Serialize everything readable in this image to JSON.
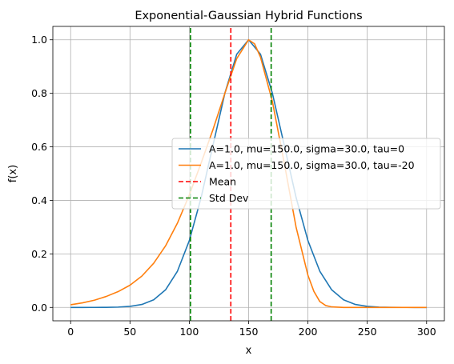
{
  "chart_data": {
    "type": "line",
    "title": "Exponential-Gaussian Hybrid Functions",
    "xlabel": "x",
    "ylabel": "f(x)",
    "xlim": [
      -15,
      315
    ],
    "ylim": [
      -0.05,
      1.05
    ],
    "xticks": [
      0,
      50,
      100,
      150,
      200,
      250,
      300
    ],
    "yticks": [
      0.0,
      0.2,
      0.4,
      0.6,
      0.8,
      1.0
    ],
    "xtick_labels": [
      "0",
      "50",
      "100",
      "150",
      "200",
      "250",
      "300"
    ],
    "ytick_labels": [
      "0.0",
      "0.2",
      "0.4",
      "0.6",
      "0.8",
      "1.0"
    ],
    "grid": true,
    "legend_position": "center-right",
    "series": [
      {
        "name": "A=1.0, mu=150.0, sigma=30.0, tau=0",
        "color": "#1f77b4",
        "style": "solid",
        "x": [
          0,
          10,
          20,
          30,
          40,
          50,
          60,
          70,
          80,
          90,
          100,
          110,
          120,
          130,
          140,
          150,
          160,
          170,
          180,
          190,
          200,
          210,
          220,
          230,
          240,
          250,
          260,
          270,
          280,
          290,
          300
        ],
        "y": [
          0.0,
          0.0,
          0.0001,
          0.0003,
          0.0012,
          0.0039,
          0.011,
          0.0286,
          0.0657,
          0.1353,
          0.2494,
          0.4111,
          0.6065,
          0.8007,
          0.946,
          1.0,
          0.946,
          0.8007,
          0.6065,
          0.4111,
          0.2494,
          0.1353,
          0.0657,
          0.0286,
          0.011,
          0.0039,
          0.0012,
          0.0003,
          0.0001,
          0.0,
          0.0
        ]
      },
      {
        "name": "A=1.0, mu=150.0, sigma=30.0, tau=-20",
        "color": "#ff7f0e",
        "style": "solid",
        "x": [
          0,
          10,
          20,
          30,
          40,
          50,
          60,
          70,
          80,
          90,
          100,
          110,
          120,
          130,
          140,
          150,
          155,
          160,
          170,
          180,
          190,
          200,
          205,
          210,
          215,
          220,
          230,
          250,
          300
        ],
        "y": [
          0.01,
          0.017,
          0.027,
          0.041,
          0.059,
          0.083,
          0.117,
          0.165,
          0.23,
          0.315,
          0.42,
          0.54,
          0.665,
          0.8,
          0.93,
          1.0,
          0.985,
          0.935,
          0.77,
          0.54,
          0.3,
          0.12,
          0.06,
          0.022,
          0.007,
          0.002,
          0.0,
          0.0,
          0.0
        ]
      },
      {
        "name": "Mean",
        "color": "#ff0000",
        "style": "dashed",
        "x": [
          135,
          135
        ],
        "y": [
          -0.05,
          1.05
        ]
      },
      {
        "name": "Std Dev",
        "color": "#008000",
        "style": "dashed",
        "x": [
          101,
          101
        ],
        "y": [
          -0.05,
          1.05
        ]
      },
      {
        "name": "",
        "color": "#008000",
        "style": "dashed",
        "x": [
          169,
          169
        ],
        "y": [
          -0.05,
          1.05
        ]
      }
    ]
  }
}
